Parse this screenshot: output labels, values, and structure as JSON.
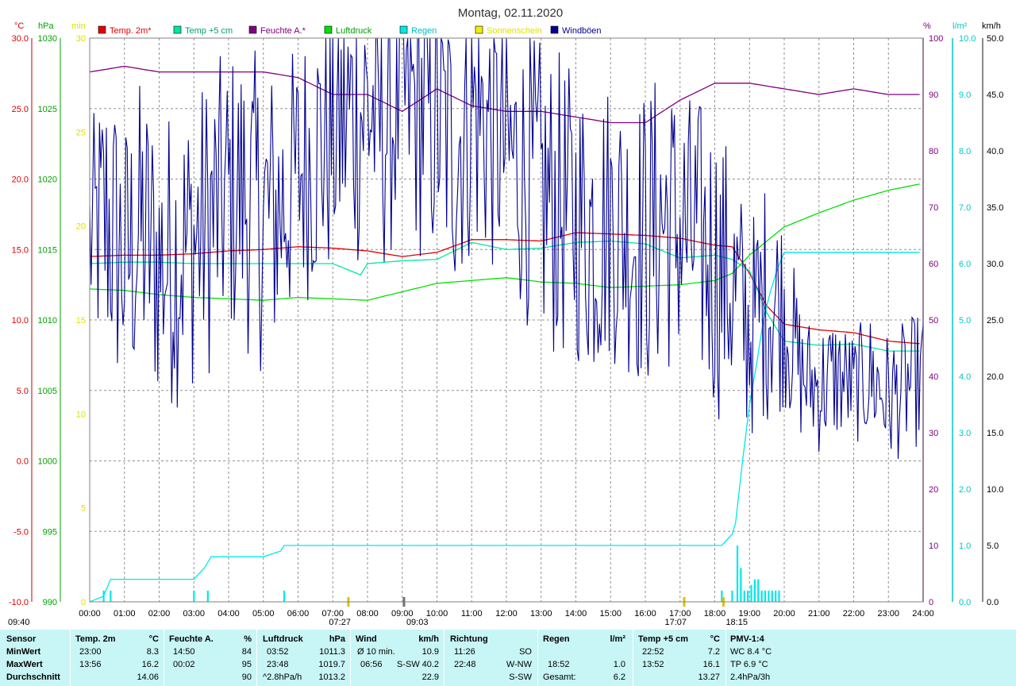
{
  "header": {
    "title": "Montag, 02.11.2020"
  },
  "legend": [
    {
      "label": "Temp. 2m*",
      "color": "#e00000",
      "text_color": "#e00000"
    },
    {
      "label": "Temp +5 cm",
      "color": "#00e6a0",
      "text_color": "#00a070"
    },
    {
      "label": "Feuchte A.*",
      "color": "#800080",
      "text_color": "#800080"
    },
    {
      "label": "Luftdruck",
      "color": "#00e000",
      "text_color": "#00a000"
    },
    {
      "label": "Regen",
      "color": "#00e8e8",
      "text_color": "#00c0c0"
    },
    {
      "label": "Sonnenschein",
      "color": "#f0f000",
      "text_color": "#e0e000"
    },
    {
      "label": "Windböen",
      "color": "#000090",
      "text_color": "#000090"
    }
  ],
  "chart_data": {
    "type": "line",
    "title": "Montag, 02.11.2020",
    "x_unit": "time of day",
    "xlim": [
      "00:00",
      "24:00"
    ],
    "x_ticks": [
      "00:00",
      "01:00",
      "02:00",
      "03:00",
      "04:00",
      "05:00",
      "06:00",
      "07:00",
      "08:00",
      "09:00",
      "10:00",
      "11:00",
      "12:00",
      "13:00",
      "14:00",
      "15:00",
      "16:00",
      "17:00",
      "18:00",
      "19:00",
      "20:00",
      "21:00",
      "22:00",
      "23:00",
      "24:00"
    ],
    "axes": {
      "temp": {
        "unit": "°C",
        "range": [
          -10,
          30
        ],
        "ticks": [
          "30.0",
          "25.0",
          "20.0",
          "15.0",
          "10.0",
          "5.0",
          "0.0",
          "-5.0",
          "-10.0"
        ],
        "color": "#e00000"
      },
      "pressure": {
        "unit": "hPa",
        "range": [
          990,
          1030
        ],
        "ticks": [
          "1030",
          "1025",
          "1020",
          "1015",
          "1010",
          "1005",
          "1000",
          "995",
          "990"
        ],
        "color": "#00a000"
      },
      "sunshine": {
        "unit": "min",
        "range": [
          0,
          30
        ],
        "ticks": [
          "30",
          "25",
          "20",
          "15",
          "10",
          "5",
          "0"
        ],
        "color": "#e0e000"
      },
      "humidity": {
        "unit": "%",
        "range": [
          0,
          100
        ],
        "ticks": [
          "100",
          "90",
          "80",
          "70",
          "60",
          "50",
          "40",
          "30",
          "20",
          "10",
          "0"
        ],
        "color": "#800080"
      },
      "rain": {
        "unit": "l/m²",
        "range": [
          0,
          10
        ],
        "ticks": [
          "10.0",
          "9.0",
          "8.0",
          "7.0",
          "6.0",
          "5.0",
          "4.0",
          "3.0",
          "2.0",
          "1.0",
          "0.0"
        ],
        "color": "#00c8c8"
      },
      "wind": {
        "unit": "km/h",
        "range": [
          0,
          50
        ],
        "ticks": [
          "50.0",
          "45.0",
          "40.0",
          "35.0",
          "30.0",
          "25.0",
          "20.0",
          "15.0",
          "10.0",
          "5.0",
          "0.0"
        ],
        "color": "#000000"
      }
    },
    "series": [
      {
        "name": "Temp. 2m*",
        "axis": "temp",
        "color": "#e00000",
        "x": [
          0,
          1,
          2,
          3,
          4,
          5,
          6,
          7,
          8,
          9,
          10,
          11,
          12,
          13,
          14,
          15,
          16,
          17,
          18,
          18.5,
          19,
          19.5,
          20,
          21,
          22,
          23,
          24
        ],
        "values": [
          14.5,
          14.6,
          14.6,
          14.7,
          14.9,
          15.0,
          15.2,
          15.1,
          14.9,
          14.5,
          14.8,
          15.7,
          15.7,
          15.6,
          16.2,
          16.1,
          16.0,
          15.8,
          15.3,
          15.2,
          13.3,
          11.0,
          9.7,
          9.3,
          9.1,
          8.5,
          8.3
        ]
      },
      {
        "name": "Temp +5 cm",
        "axis": "temp",
        "color": "#00e6a0",
        "x": [
          0,
          1,
          2,
          3,
          4,
          5,
          6,
          7,
          7.8,
          8,
          9,
          10,
          11,
          12,
          13,
          14,
          15,
          16,
          17,
          18,
          18.5,
          19,
          19.5,
          20,
          21,
          22,
          23,
          24
        ],
        "values": [
          14.0,
          14.1,
          14.1,
          14.0,
          14.0,
          14.0,
          14.0,
          14.0,
          13.2,
          14.0,
          14.2,
          14.3,
          15.5,
          15.0,
          15.1,
          15.5,
          15.6,
          15.4,
          14.4,
          14.6,
          14.3,
          13.5,
          10.5,
          8.5,
          8.2,
          8.3,
          7.8,
          7.8
        ]
      },
      {
        "name": "Feuchte A.*",
        "axis": "humidity",
        "color": "#800080",
        "x": [
          0,
          1,
          2,
          3,
          4,
          5,
          6,
          7,
          8,
          9,
          10,
          11,
          12,
          13,
          14,
          15,
          16,
          17,
          18,
          19,
          20,
          21,
          22,
          23,
          24
        ],
        "values": [
          94,
          95,
          94,
          94,
          94,
          94,
          93,
          90,
          90,
          87,
          91,
          88,
          87,
          87,
          86,
          85,
          85,
          89,
          92,
          92,
          91,
          90,
          91,
          90,
          90
        ]
      },
      {
        "name": "Luftdruck",
        "axis": "pressure",
        "color": "#00e000",
        "x": [
          0,
          1,
          2,
          3,
          4,
          5,
          6,
          7,
          8,
          9,
          10,
          11,
          12,
          13,
          14,
          15,
          16,
          17,
          18,
          18.5,
          19,
          19.5,
          20,
          21,
          22,
          23,
          24
        ],
        "values": [
          1012.2,
          1012.1,
          1011.8,
          1011.6,
          1011.5,
          1011.4,
          1011.6,
          1011.5,
          1011.4,
          1012.0,
          1012.6,
          1012.8,
          1013.0,
          1012.7,
          1012.6,
          1012.3,
          1012.4,
          1012.5,
          1012.8,
          1013.3,
          1014.6,
          1015.6,
          1016.6,
          1017.6,
          1018.5,
          1019.2,
          1019.7
        ]
      },
      {
        "name": "Regen",
        "axis": "rain",
        "color": "#00e8e8",
        "x": [
          0,
          0.4,
          0.6,
          1,
          2,
          3,
          3.3,
          3.5,
          4,
          4.5,
          5,
          5.5,
          5.6,
          6,
          7,
          8,
          9,
          10,
          11,
          12,
          13,
          14,
          15,
          16,
          17,
          17.5,
          18.2,
          18.5,
          18.6,
          18.8,
          19.0,
          19.2,
          19.4,
          19.6,
          19.8,
          20,
          21,
          22,
          23,
          24
        ],
        "values": [
          0,
          0.1,
          0.4,
          0.4,
          0.4,
          0.4,
          0.6,
          0.8,
          0.8,
          0.8,
          0.8,
          0.9,
          1.0,
          1.0,
          1.0,
          1.0,
          1.0,
          1.0,
          1.0,
          1.0,
          1.0,
          1.0,
          1.0,
          1.0,
          1.0,
          1.0,
          1.0,
          1.2,
          1.4,
          2.5,
          3.5,
          4.2,
          5.0,
          5.5,
          5.9,
          6.2,
          6.2,
          6.2,
          6.2,
          6.2
        ]
      },
      {
        "name": "Windböen",
        "axis": "wind",
        "color": "#000090",
        "x": [
          0,
          0.5,
          1,
          1.5,
          2,
          2.5,
          3,
          3.5,
          4,
          4.5,
          5,
          5.5,
          6,
          6.5,
          7,
          7.5,
          8,
          8.5,
          9,
          9.5,
          10,
          10.5,
          11,
          11.5,
          12,
          12.5,
          13,
          13.5,
          14,
          14.5,
          15,
          15.5,
          16,
          16.5,
          17,
          17.5,
          18,
          18.5,
          19,
          19.5,
          20,
          20.5,
          21,
          21.5,
          22,
          22.5,
          23,
          23.5,
          24
        ],
        "values": [
          32,
          34,
          30,
          33,
          30,
          31,
          32,
          34,
          36,
          36,
          34,
          35,
          38,
          40,
          42,
          43,
          44,
          42,
          45,
          44,
          43,
          40,
          44,
          42,
          40,
          38,
          36,
          35,
          34,
          33,
          34,
          33,
          32,
          34,
          33,
          32,
          30,
          28,
          24,
          27,
          26,
          20,
          19,
          20,
          19,
          20,
          18,
          19,
          20
        ],
        "amplitude": [
          10,
          14,
          13,
          14,
          13,
          14,
          13,
          14,
          13,
          14,
          14,
          13,
          12,
          13,
          14,
          14,
          14,
          13,
          12,
          14,
          14,
          13,
          14,
          13,
          12,
          13,
          14,
          14,
          13,
          14,
          13,
          13,
          14,
          14,
          13,
          13,
          14,
          12,
          10,
          11,
          9,
          6,
          6,
          6,
          5,
          6,
          6,
          6,
          6
        ]
      }
    ],
    "rain_bars": {
      "axis": "rain",
      "color": "#00e8e8",
      "x": [
        0.4,
        0.6,
        3.0,
        3.4,
        5.6,
        18.2,
        18.5,
        18.65,
        18.75,
        18.85,
        18.95,
        19.05,
        19.15,
        19.25,
        19.35,
        19.45,
        19.55,
        19.65,
        19.75,
        19.85
      ],
      "values": [
        0.2,
        0.2,
        0.2,
        0.2,
        0.2,
        0.2,
        0.2,
        1.0,
        0.6,
        0.2,
        0.2,
        0.3,
        0.4,
        0.4,
        0.2,
        0.2,
        0.2,
        0.2,
        0.2,
        0.2
      ]
    },
    "sun_events": [
      {
        "time": 7.45,
        "label": "07:27",
        "kind": "sunrise"
      },
      {
        "time": 9.05,
        "label": "09:03",
        "kind": "transit"
      },
      {
        "time": 17.12,
        "label": "17:07",
        "kind": "sunset"
      },
      {
        "time": 18.25,
        "label": "18:15",
        "kind": "event"
      }
    ],
    "grid": true
  },
  "stats": {
    "sensor": {
      "title": "Sensor",
      "rows": [
        "MinWert",
        "MaxWert",
        "Durchschnitt"
      ]
    },
    "temp2m": {
      "title": "Temp. 2m",
      "unit": "°C",
      "min_time": "23:00",
      "min": "8.3",
      "max_time": "13:56",
      "max": "16.2",
      "avg": "14.06"
    },
    "feuchte": {
      "title": "Feuchte A.",
      "unit": "%",
      "min_time": "14:50",
      "min": "84",
      "max_time": "00:02",
      "max": "95",
      "avg": "90"
    },
    "luftdruck": {
      "title": "Luftdruck",
      "unit": "hPa",
      "min_time": "03:52",
      "min": "1011.3",
      "max_time": "23:48",
      "max": "1019.7",
      "avg_label": "^2.8hPa/h",
      "avg": "1013.2"
    },
    "wind": {
      "title": "Wind",
      "unit": "km/h",
      "row1_label": "Ø 10 min.",
      "row1_val": "10.9",
      "row2_time": "06:56",
      "row2_dir": "S-SW",
      "row2_val": "40.2",
      "avg": "22.9"
    },
    "richtung": {
      "title": "Richtung",
      "row1_time": "11:26",
      "row1_dir": "SO",
      "row2_time": "22:48",
      "row2_dir": "W-NW",
      "avg_dir": "S-SW"
    },
    "regen": {
      "title": "Regen",
      "unit": "l/m²",
      "max_time": "18:52",
      "max": "1.0",
      "total_label": "Gesamt:",
      "total": "6.2"
    },
    "temp5cm": {
      "title": "Temp +5 cm",
      "unit": "°C",
      "min_time": "22:52",
      "min": "7.2",
      "max_time": "13:52",
      "max": "16.1",
      "avg": "13.27"
    },
    "pmv": {
      "title": "PMV-1:4",
      "wc": "WC 8.4 °C",
      "tp": "TP 6.9 °C",
      "trend": "2.4hPa/3h"
    }
  },
  "corner": {
    "time": "09:40"
  }
}
